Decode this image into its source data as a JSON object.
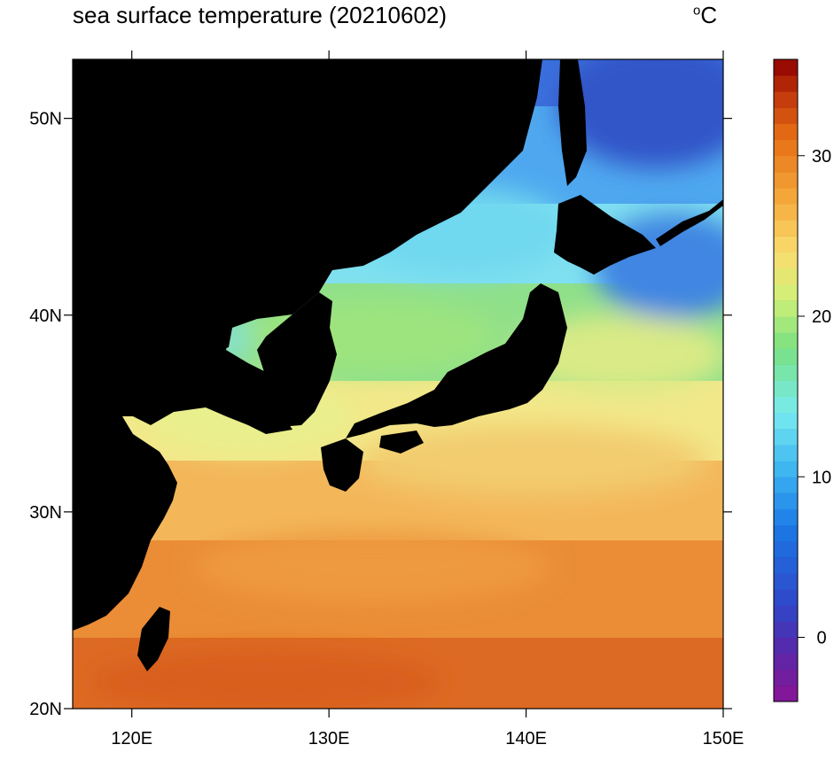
{
  "title": "sea surface temperature (20210602)",
  "unit": "°C",
  "unit_sup": "o",
  "unit_letter": "C",
  "map": {
    "projection": "lat-lon",
    "lon_range": [
      117,
      150
    ],
    "lat_range": [
      20,
      53
    ],
    "land_color": "#000000",
    "lon_ticks": [
      {
        "value": 120,
        "label": "120E"
      },
      {
        "value": 130,
        "label": "130E"
      },
      {
        "value": 140,
        "label": "140E"
      },
      {
        "value": 150,
        "label": "150E"
      }
    ],
    "lat_ticks": [
      {
        "value": 20,
        "label": "20N"
      },
      {
        "value": 30,
        "label": "30N"
      },
      {
        "value": 40,
        "label": "40N"
      },
      {
        "value": 50,
        "label": "50N"
      }
    ]
  },
  "colorbar": {
    "range": [
      -4,
      36
    ],
    "step": 1,
    "ticks": [
      {
        "value": 0,
        "label": "0"
      },
      {
        "value": 10,
        "label": "10"
      },
      {
        "value": 20,
        "label": "20"
      },
      {
        "value": 30,
        "label": "30"
      }
    ]
  }
}
